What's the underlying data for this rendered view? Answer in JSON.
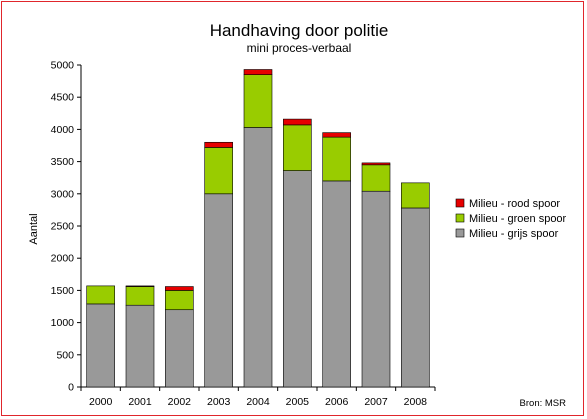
{
  "chart_data": {
    "type": "bar",
    "stacked": true,
    "title": "Handhaving door politie",
    "subtitle": "mini proces-verbaal",
    "xlabel": "",
    "ylabel": "Aantal",
    "ylim": [
      0,
      5000
    ],
    "ytick_step": 500,
    "yticks": [
      "0",
      "500",
      "1000",
      "1500",
      "2000",
      "2500",
      "3000",
      "3500",
      "4000",
      "4500",
      "5000"
    ],
    "categories": [
      "2000",
      "2001",
      "2002",
      "2003",
      "2004",
      "2005",
      "2006",
      "2007",
      "2008"
    ],
    "series": [
      {
        "name": "Milieu - grijs spoor",
        "color": "#999999",
        "values": [
          1290,
          1270,
          1200,
          3000,
          4030,
          3360,
          3200,
          3040,
          2780
        ]
      },
      {
        "name": "Milieu - groen spoor",
        "color": "#99cc00",
        "values": [
          280,
          290,
          300,
          720,
          820,
          710,
          680,
          410,
          390
        ]
      },
      {
        "name": "Milieu - rood spoor",
        "color": "#e60000",
        "values": [
          0,
          10,
          60,
          80,
          80,
          90,
          70,
          30,
          0
        ]
      }
    ],
    "legend_position": "right",
    "grid": false
  },
  "source_note": "Bron: MSR"
}
